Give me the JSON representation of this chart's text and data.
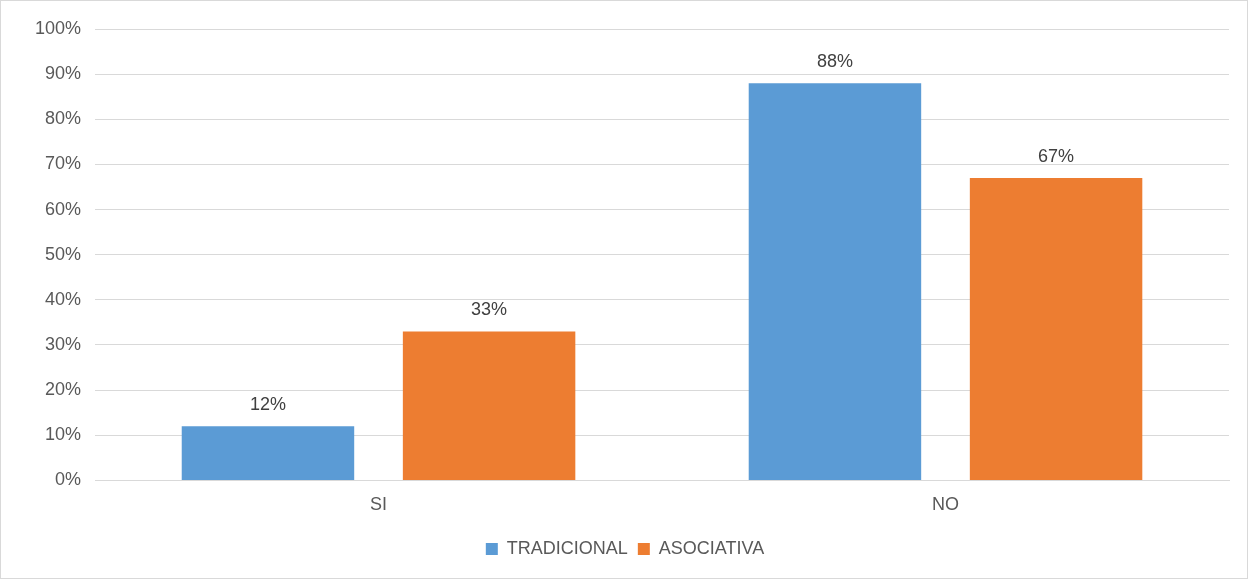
{
  "chart_data": {
    "type": "bar",
    "categories": [
      "SI",
      "NO"
    ],
    "series": [
      {
        "name": "TRADICIONAL",
        "color": "#5b9bd5",
        "values": [
          12,
          88
        ],
        "value_labels": [
          "12%",
          "88%"
        ]
      },
      {
        "name": "ASOCIATIVA",
        "color": "#ed7d31",
        "values": [
          33,
          67
        ],
        "value_labels": [
          "33%",
          "67%"
        ]
      }
    ],
    "ylim": [
      0,
      100
    ],
    "yticks": [
      {
        "value": 0,
        "label": "0%"
      },
      {
        "value": 10,
        "label": "10%"
      },
      {
        "value": 20,
        "label": "20%"
      },
      {
        "value": 30,
        "label": "30%"
      },
      {
        "value": 40,
        "label": "40%"
      },
      {
        "value": 50,
        "label": "50%"
      },
      {
        "value": 60,
        "label": "60%"
      },
      {
        "value": 70,
        "label": "70%"
      },
      {
        "value": 80,
        "label": "80%"
      },
      {
        "value": 90,
        "label": "90%"
      },
      {
        "value": 100,
        "label": "100%"
      }
    ],
    "grid": "y",
    "legend": "bottom"
  }
}
